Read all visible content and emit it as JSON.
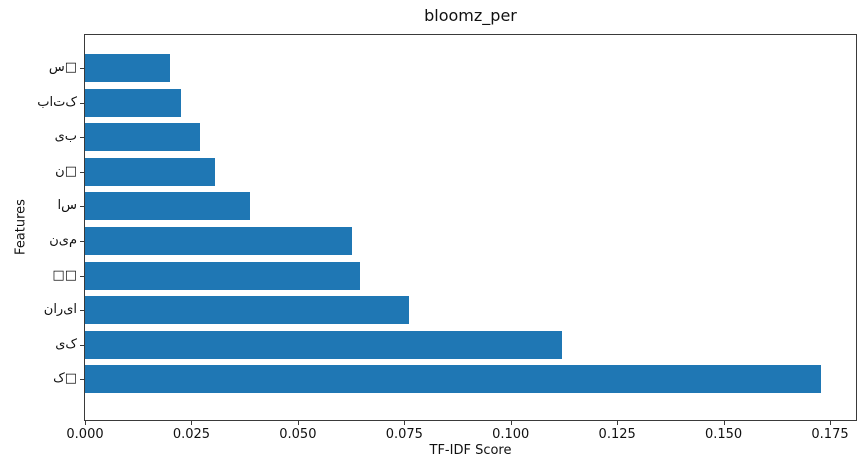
{
  "chart_data": {
    "type": "bar",
    "orientation": "horizontal",
    "title": "bloomz_per",
    "xlabel": "TF-IDF Score",
    "ylabel": "Features",
    "categories": [
      "س‌□",
      "ب‌ا‌ت‌ک",
      "ی‌ب",
      "ن‌□",
      "ا‌س",
      "ن‌ی‌م",
      "□□",
      "ن‌ا‌ر‌ی‌ا",
      "ی‌ک",
      "ک‌□"
    ],
    "values": [
      0.02,
      0.0225,
      0.027,
      0.0306,
      0.0387,
      0.0627,
      0.0645,
      0.076,
      0.112,
      0.1729
    ],
    "xticks": [
      0.0,
      0.025,
      0.05,
      0.075,
      0.1,
      0.125,
      0.15,
      0.175
    ],
    "xtick_labels": [
      "0.000",
      "0.025",
      "0.050",
      "0.075",
      "0.100",
      "0.125",
      "0.150",
      "0.175"
    ],
    "xlim": [
      0,
      0.1811
    ],
    "grid": false,
    "legend": null,
    "bar_color": "#1f77b4",
    "missing_glyph_char": "□"
  }
}
